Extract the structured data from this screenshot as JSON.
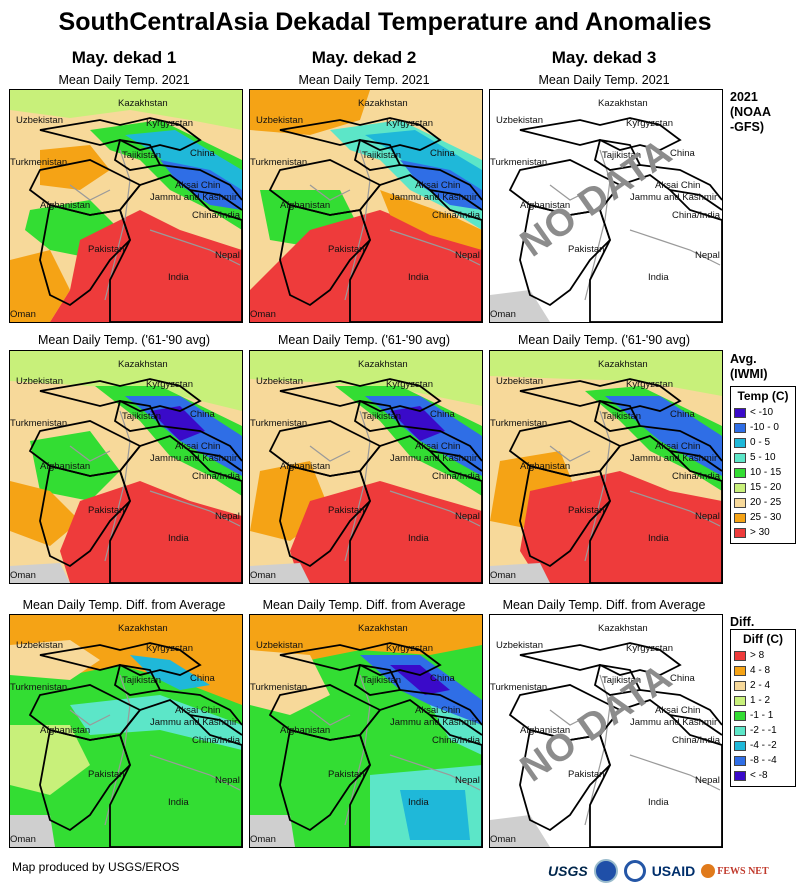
{
  "title": "SouthCentralAsia Dekadal Temperature and Anomalies",
  "columns": [
    "May. dekad 1",
    "May. dekad 2",
    "May. dekad 3"
  ],
  "rows": [
    {
      "subtitle": "Mean Daily Temp. 2021",
      "label": "2021\n(NOAA\n-GFS)"
    },
    {
      "subtitle": "Mean Daily Temp. ('61-'90 avg)",
      "label": "Avg.\n(IWMI)"
    },
    {
      "subtitle": "Mean Daily Temp. Diff. from Average",
      "label": "Diff."
    }
  ],
  "nodata_text": "NO DATA",
  "place_labels": [
    "Kazakhstan",
    "Uzbekistan",
    "Kyrgyzstan",
    "China",
    "Tajikistan",
    "Turkmenistan",
    "Aksai Chin",
    "Jammu and Kashmir",
    "Afghanistan",
    "China/India",
    "Pakistan",
    "Nepal",
    "India",
    "Oman"
  ],
  "temp_legend": {
    "title": "Temp (C)",
    "items": [
      {
        "label": "< -10",
        "color": "#3a0ac9"
      },
      {
        "label": "-10 - 0",
        "color": "#2f6ee6"
      },
      {
        "label": "0 - 5",
        "color": "#1fb8d9"
      },
      {
        "label": "5 - 10",
        "color": "#5ce6c8"
      },
      {
        "label": "10 - 15",
        "color": "#33dd33"
      },
      {
        "label": "15 - 20",
        "color": "#c8f07a"
      },
      {
        "label": "20 - 25",
        "color": "#f7d99a"
      },
      {
        "label": "25 - 30",
        "color": "#f5a315"
      },
      {
        "label": "> 30",
        "color": "#ee3b3b"
      }
    ]
  },
  "diff_legend": {
    "title": "Diff (C)",
    "items": [
      {
        "label": "> 8",
        "color": "#ee3b3b"
      },
      {
        "label": "4 - 8",
        "color": "#f5a315"
      },
      {
        "label": "2 - 4",
        "color": "#f7d99a"
      },
      {
        "label": "1 - 2",
        "color": "#c8f07a"
      },
      {
        "label": "-1 - 1",
        "color": "#33dd33"
      },
      {
        "label": "-2 - -1",
        "color": "#5ce6c8"
      },
      {
        "label": "-4 - -2",
        "color": "#1fb8d9"
      },
      {
        "label": "-8 - -4",
        "color": "#2f6ee6"
      },
      {
        "label": "< -8",
        "color": "#3a0ac9"
      }
    ]
  },
  "credit": "Map produced by USGS/EROS",
  "logos": {
    "usgs": "USGS",
    "usaid": "USAID",
    "fews": "FEWS NET"
  }
}
